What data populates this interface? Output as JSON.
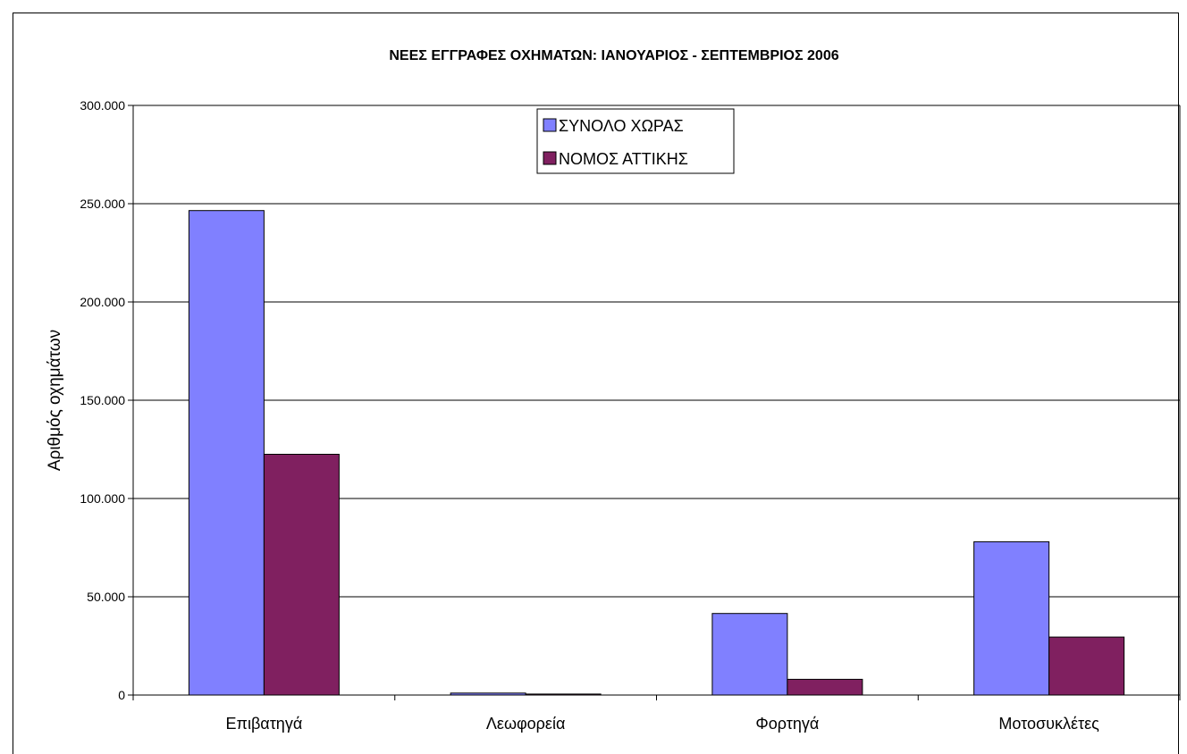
{
  "chart_data": {
    "type": "bar",
    "title": "ΝΕΕΣ ΕΓΓΡΑΦΕΣ ΟΧΗΜΑΤΩΝ:  ΙΑΝΟΥΑΡΙΟΣ - ΣΕΠΤΕΜΒΡΙΟΣ 2006",
    "xlabel": "",
    "ylabel": "Αριθμός οχημάτων",
    "categories": [
      "Επιβατηγά",
      "Λεωφορεία",
      "Φορτηγά",
      "Μοτοσυκλέτες"
    ],
    "series": [
      {
        "name": "ΣΥΝΟΛΟ ΧΩΡΑΣ",
        "color": "#8080ff",
        "values": [
          246500,
          1000,
          41500,
          78000
        ]
      },
      {
        "name": "ΝΟΜΟΣ ΑΤΤΙΚΗΣ",
        "color": "#802060",
        "values": [
          122500,
          500,
          8000,
          29500
        ]
      }
    ],
    "ylim": [
      0,
      300000
    ],
    "yticks": [
      0,
      50000,
      100000,
      150000,
      200000,
      250000,
      300000
    ],
    "ytick_labels": [
      "0",
      "50.000",
      "100.000",
      "150.000",
      "200.000",
      "250.000",
      "300.000"
    ],
    "grid": true,
    "legend_position": "top-center"
  }
}
